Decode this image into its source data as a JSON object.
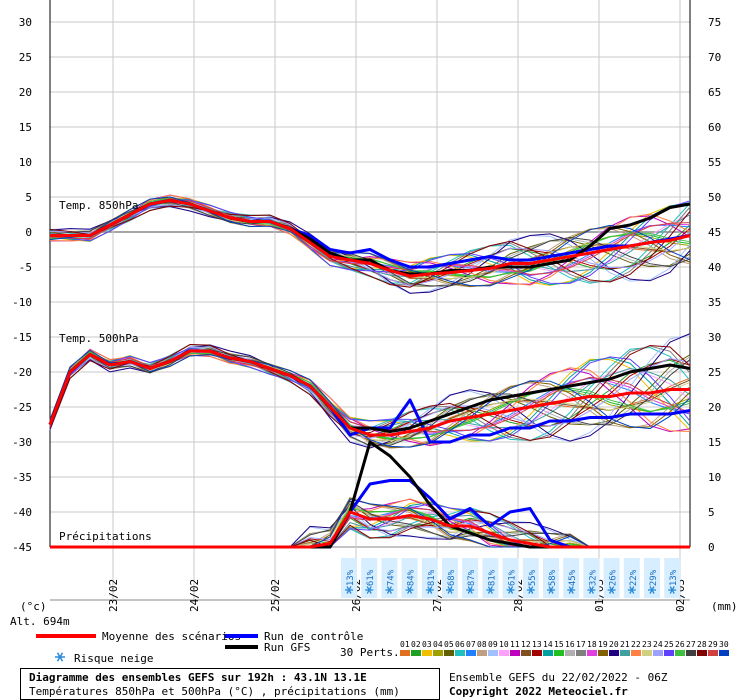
{
  "chart_data": {
    "type": "line",
    "x_ticks": [
      "23/02",
      "24/02",
      "25/02",
      "26/02",
      "27/02",
      "28/02",
      "01/03",
      "02/03"
    ],
    "y_left_ticks": [
      30,
      25,
      20,
      15,
      10,
      5,
      0,
      -5,
      -10,
      -15,
      -20,
      -25,
      -30,
      -35,
      -40,
      -45
    ],
    "y_right_ticks": [
      75,
      70,
      65,
      60,
      55,
      50,
      45,
      40,
      35,
      30,
      25,
      20,
      15,
      10,
      5,
      0
    ],
    "ylim_left": [
      -45,
      30
    ],
    "ylim_right": [
      0,
      75
    ],
    "left_unit": "(°c)",
    "right_unit": "(mm)",
    "altitude": "Alt. 694m",
    "panel_labels": {
      "t850": "Temp. 850hPa",
      "t500": "Temp. 500hPa",
      "precip": "Précipitations"
    },
    "snow_risk": [
      "13%",
      "61%",
      "74%",
      "84%",
      "81%",
      "68%",
      "87%",
      "81%",
      "61%",
      "55%",
      "58%",
      "45%",
      "32%",
      "26%",
      "22%",
      "29%",
      "13%"
    ],
    "series": [
      {
        "name": "Moyenne des scénarios",
        "color": "#ff0000",
        "t850": [
          -0.5,
          -0.5,
          -0.5,
          1,
          2.5,
          4,
          4.5,
          4,
          3,
          2,
          1.5,
          1.5,
          0.5,
          -1.5,
          -3.5,
          -4,
          -4.5,
          -5.5,
          -6.3,
          -6,
          -5.8,
          -5.5,
          -5.2,
          -4.5,
          -4.5,
          -4,
          -3.5,
          -3,
          -2.5,
          -2,
          -1.5,
          -1.2,
          -0.5
        ],
        "t500": [
          -27.5,
          -20,
          -17.5,
          -19,
          -18.5,
          -19.5,
          -18.5,
          -17,
          -17,
          -18,
          -18.5,
          -19.5,
          -20.5,
          -22,
          -25,
          -28,
          -29,
          -29,
          -28.5,
          -28,
          -27,
          -26.5,
          -26,
          -25.5,
          -25,
          -24.5,
          -24,
          -23.5,
          -23.5,
          -23,
          -23,
          -22.5,
          -22.5
        ],
        "precip": [
          0,
          0,
          0,
          0,
          0,
          0,
          0,
          0,
          0,
          0,
          0,
          0,
          0,
          0,
          0.5,
          5,
          4,
          4,
          4.5,
          4,
          3,
          3,
          2,
          1,
          0.5,
          0,
          0,
          0,
          0,
          0,
          0,
          0,
          0
        ]
      },
      {
        "name": "Run de contrôle",
        "color": "#0000ff",
        "t850": [
          -0.5,
          -0.5,
          -0.5,
          1,
          2.5,
          4,
          4.5,
          4,
          3,
          2,
          1.5,
          1.5,
          0.5,
          -0.5,
          -2.5,
          -3,
          -2.5,
          -4,
          -5,
          -5,
          -4.5,
          -4,
          -3.5,
          -4,
          -4,
          -3.5,
          -3,
          -2.5,
          -2,
          -2,
          -1.5,
          -1,
          -0.5
        ],
        "t500": [
          -27.5,
          -20,
          -17.5,
          -19,
          -18.5,
          -19.5,
          -18.5,
          -17,
          -17,
          -18,
          -18.5,
          -19.5,
          -20.5,
          -22,
          -25,
          -29,
          -28,
          -28,
          -24,
          -30,
          -30,
          -29,
          -29,
          -28,
          -28,
          -27,
          -27,
          -26.5,
          -26.5,
          -26,
          -26,
          -26,
          -25.5
        ],
        "precip": [
          0,
          0,
          0,
          0,
          0,
          0,
          0,
          0,
          0,
          0,
          0,
          0,
          0,
          0,
          0,
          5,
          9,
          9.5,
          9.5,
          7,
          4,
          5.5,
          3,
          5,
          5.5,
          1,
          0,
          0,
          0,
          0,
          0,
          0,
          0
        ]
      },
      {
        "name": "Run GFS",
        "color": "#000000",
        "t850": [
          -0.5,
          -0.5,
          -0.5,
          1,
          2.5,
          4,
          4.5,
          4,
          3,
          2,
          1.5,
          1.5,
          0.5,
          -1,
          -3,
          -4,
          -4,
          -5.5,
          -6,
          -6,
          -5.5,
          -5.5,
          -5,
          -5,
          -5,
          -4.5,
          -4,
          -2,
          0.5,
          1,
          2,
          3.5,
          4
        ],
        "t500": [
          -27.5,
          -20,
          -17.5,
          -19,
          -18.5,
          -19.5,
          -18.5,
          -17,
          -17,
          -18,
          -18.5,
          -19.5,
          -20.5,
          -22,
          -25,
          -28,
          -28,
          -28.5,
          -28,
          -27,
          -26,
          -25,
          -24,
          -23.5,
          -23,
          -22.5,
          -22,
          -21.5,
          -21,
          -20,
          -19.5,
          -19,
          -19.5
        ],
        "precip": [
          0,
          0,
          0,
          0,
          0,
          0,
          0,
          0,
          0,
          0,
          0,
          0,
          0,
          0,
          0,
          5,
          15,
          13,
          10,
          6,
          3,
          2,
          1,
          0.5,
          0,
          0,
          0,
          0,
          0,
          0,
          0,
          0,
          0
        ]
      }
    ],
    "legend": {
      "mean": "Moyenne des scénarios",
      "control": "Run de contrôle",
      "gfs": "Run GFS",
      "perts": "30 Perts.",
      "snow": "Risque neige"
    },
    "pert_numbers": [
      "01",
      "02",
      "03",
      "04",
      "05",
      "06",
      "07",
      "08",
      "09",
      "10",
      "11",
      "12",
      "13",
      "14",
      "15",
      "16",
      "17",
      "18",
      "19",
      "20",
      "21",
      "22",
      "23",
      "24",
      "25",
      "26",
      "27",
      "28",
      "29",
      "30"
    ],
    "pert_colors": [
      "#e07020",
      "#20a020",
      "#f0c000",
      "#a0a000",
      "#606000",
      "#20c0c0",
      "#2080ff",
      "#c0a080",
      "#a0c0ff",
      "#ffa0ff",
      "#c000c0",
      "#805020",
      "#a00000",
      "#00a0a0",
      "#20c020",
      "#b0b0b0",
      "#808080",
      "#e040e0",
      "#806000",
      "#200080",
      "#40a0a0",
      "#ff8040",
      "#d0d080",
      "#a0a0ff",
      "#6040ff",
      "#40c040",
      "#404040",
      "#800000",
      "#d04040",
      "#0040c0"
    ]
  },
  "footer": {
    "title": "Diagramme des ensembles GEFS sur 192h : 43.1N 13.1E",
    "subtitle": "Températures 850hPa et 500hPa (°C) , précipitations (mm)",
    "run_info": "Ensemble GEFS du 22/02/2022 - 06Z",
    "copyright": "Copyright 2022 Meteociel.fr"
  }
}
